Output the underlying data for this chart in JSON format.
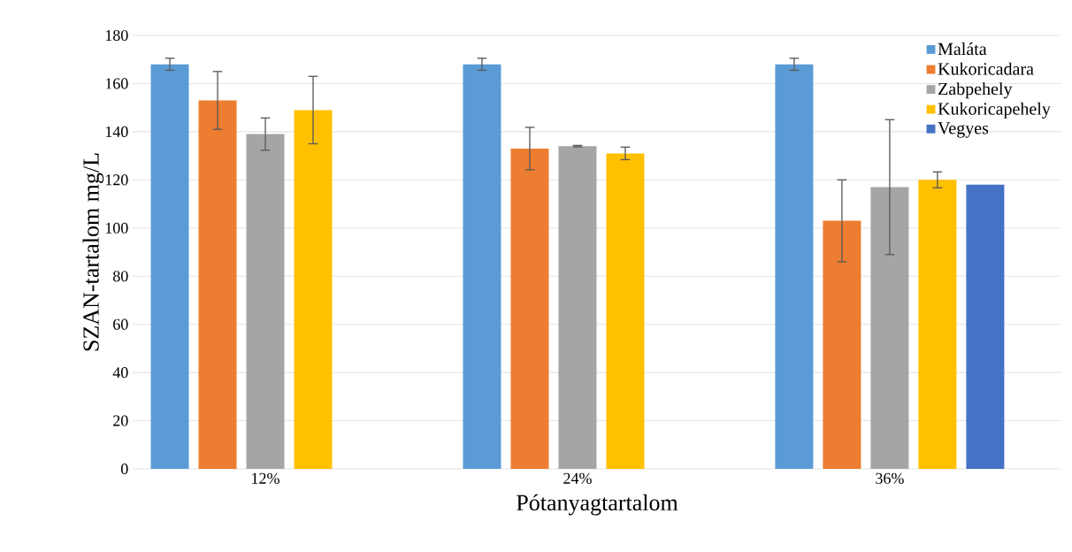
{
  "chart_data": {
    "type": "bar",
    "xlabel": "Pótanyagtartalom",
    "ylabel": "SZAN-tartalom mg/L",
    "categories": [
      "12%",
      "24%",
      "36%"
    ],
    "series": [
      {
        "name": "Maláta",
        "color": "#5b9bd5",
        "values": [
          168,
          168,
          168
        ],
        "errors": [
          2.5,
          2.5,
          2.5
        ]
      },
      {
        "name": "Kukoricadara",
        "color": "#ed7d31",
        "values": [
          153,
          133,
          103
        ],
        "errors": [
          12,
          8.8,
          17
        ]
      },
      {
        "name": "Zabpehely",
        "color": "#a5a5a5",
        "values": [
          139,
          134,
          117
        ],
        "errors": [
          6.7,
          0.3,
          28
        ]
      },
      {
        "name": "Kukoricapehely",
        "color": "#ffc000",
        "values": [
          149,
          131,
          120
        ],
        "errors": [
          14,
          2.6,
          3.3
        ]
      },
      {
        "name": "Vegyes",
        "color": "#4472c4",
        "values": [
          null,
          null,
          118
        ],
        "errors": [
          null,
          null,
          null
        ]
      }
    ],
    "ylim": [
      0,
      180
    ],
    "yticks": [
      0,
      20,
      40,
      60,
      80,
      100,
      120,
      140,
      160,
      180
    ],
    "grid": "y",
    "legend": "top right"
  }
}
